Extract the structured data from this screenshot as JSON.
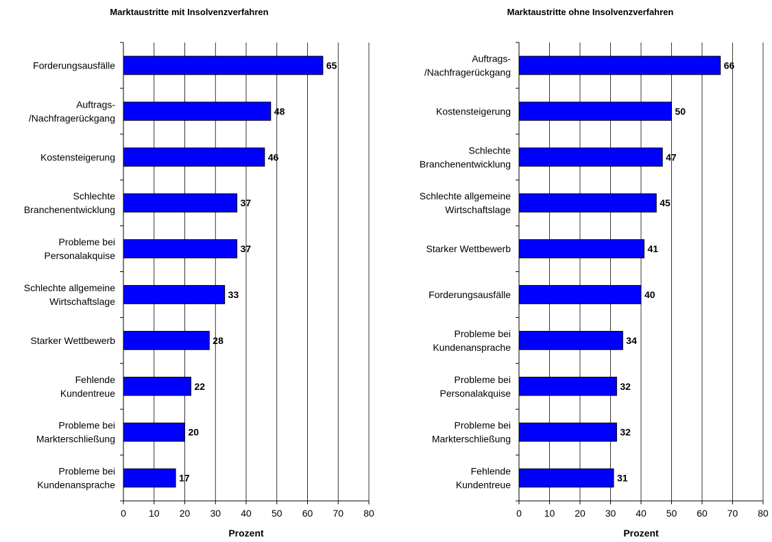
{
  "colors": {
    "bar": "#0000FF",
    "bar_stroke": "#000000",
    "grid": "#000000",
    "background": "#FFFFFF"
  },
  "chart_data": [
    {
      "type": "bar",
      "orientation": "horizontal",
      "title": "Marktaustritte mit Insolvenzverfahren",
      "xlabel": "Prozent",
      "ylabel": "",
      "xlim": [
        0,
        80
      ],
      "xticks": [
        "0",
        "10",
        "20",
        "30",
        "40",
        "50",
        "60",
        "70",
        "80"
      ],
      "grid": "vertical",
      "legend": "none",
      "categories": [
        [
          "Forderungsausfälle"
        ],
        [
          "Auftrags-",
          "/Nachfragerückgang"
        ],
        [
          "Kostensteigerung"
        ],
        [
          "Schlechte",
          "Branchenentwicklung"
        ],
        [
          "Probleme bei",
          "Personalakquise"
        ],
        [
          "Schlechte allgemeine",
          "Wirtschaftslage"
        ],
        [
          "Starker Wettbewerb"
        ],
        [
          "Fehlende",
          "Kundentreue"
        ],
        [
          "Probleme bei",
          "Markterschließung"
        ],
        [
          "Probleme bei",
          "Kundenansprache"
        ]
      ],
      "values": [
        65,
        48,
        46,
        37,
        37,
        33,
        28,
        22,
        20,
        17
      ]
    },
    {
      "type": "bar",
      "orientation": "horizontal",
      "title": "Marktaustritte ohne Insolvenzverfahren",
      "xlabel": "Prozent",
      "ylabel": "",
      "xlim": [
        0,
        80
      ],
      "xticks": [
        "0",
        "10",
        "20",
        "30",
        "40",
        "50",
        "60",
        "70",
        "80"
      ],
      "grid": "vertical",
      "legend": "none",
      "categories": [
        [
          "Auftrags-",
          "/Nachfragerückgang"
        ],
        [
          "Kostensteigerung"
        ],
        [
          "Schlechte",
          "Branchenentwicklung"
        ],
        [
          "Schlechte allgemeine",
          "Wirtschaftslage"
        ],
        [
          "Starker Wettbewerb"
        ],
        [
          "Forderungsausfälle"
        ],
        [
          "Probleme bei",
          "Kundenansprache"
        ],
        [
          "Probleme bei",
          "Personalakquise"
        ],
        [
          "Probleme bei",
          "Markterschließung"
        ],
        [
          "Fehlende",
          "Kundentreue"
        ]
      ],
      "values": [
        66,
        50,
        47,
        45,
        41,
        40,
        34,
        32,
        32,
        31
      ]
    }
  ]
}
